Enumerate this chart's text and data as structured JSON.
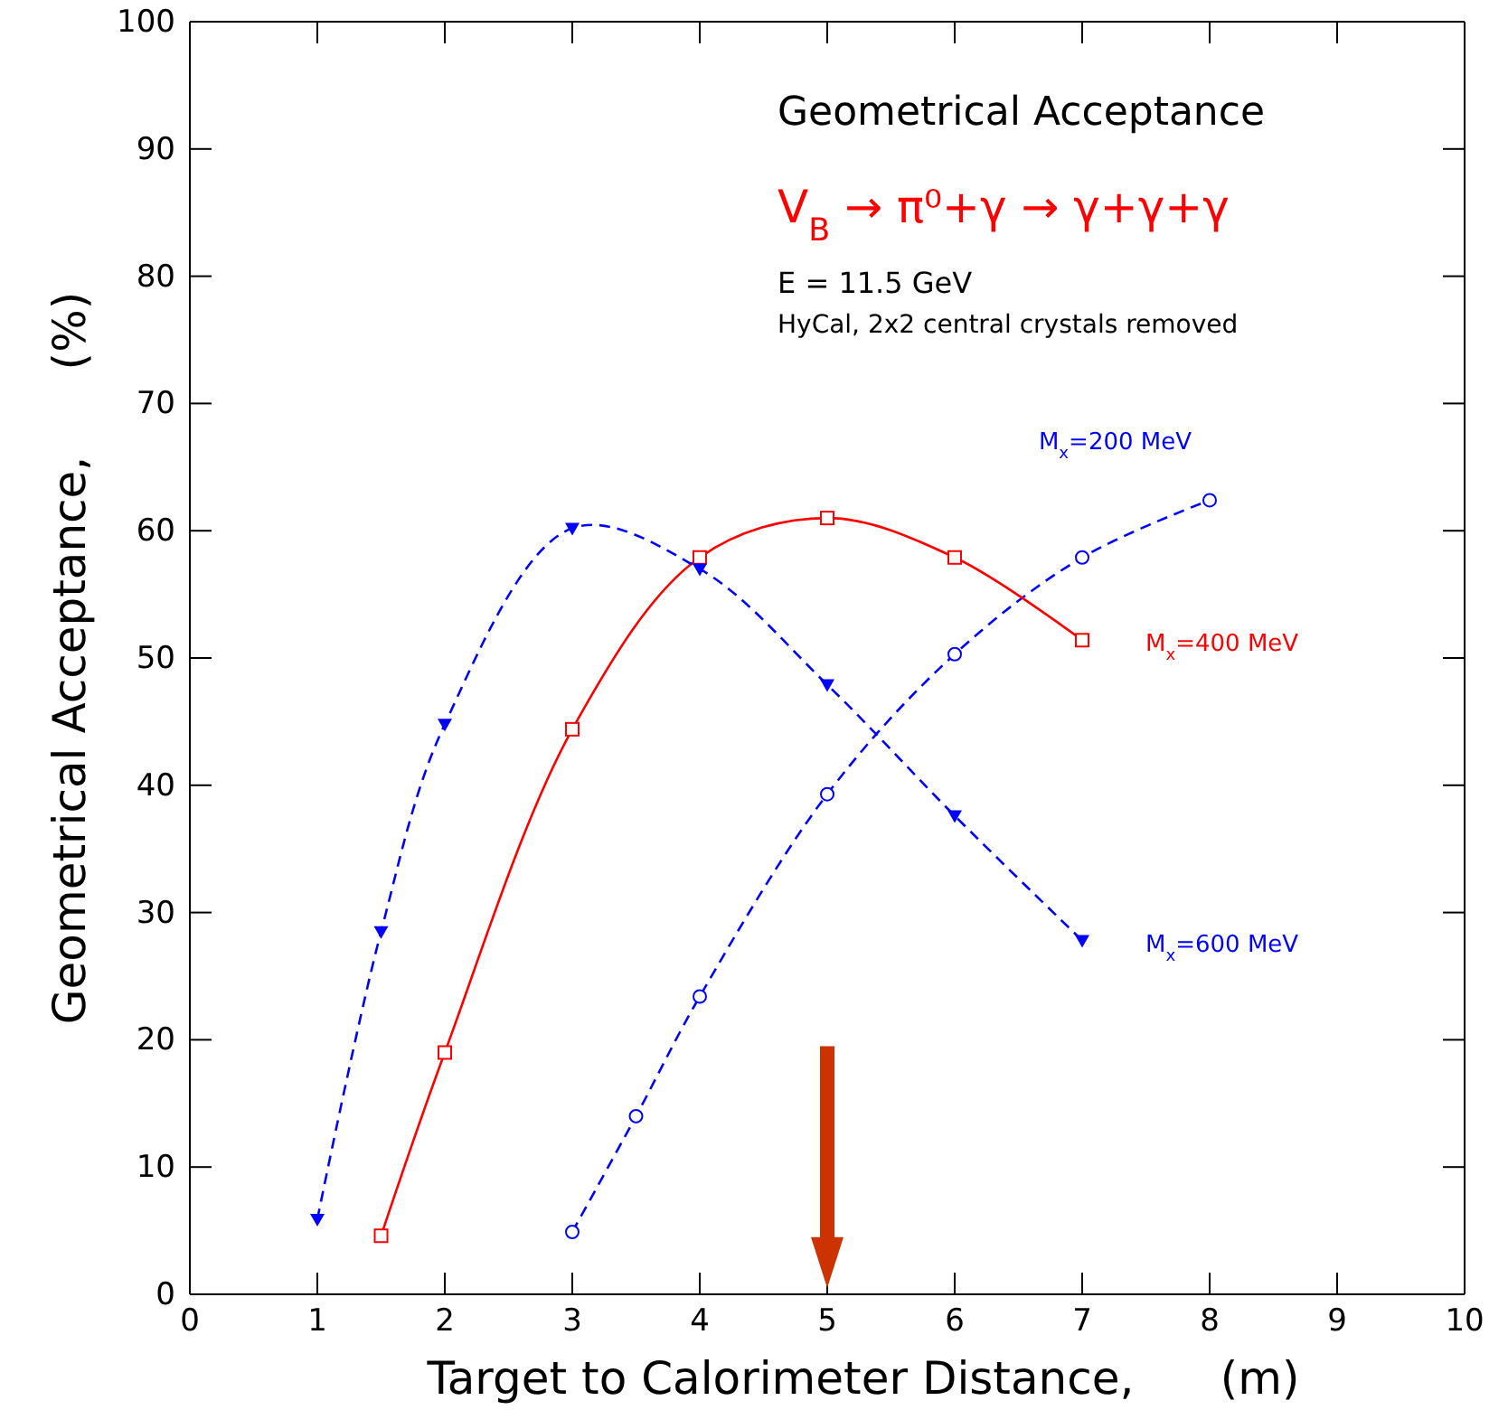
{
  "chart_data": {
    "type": "line",
    "title": "Geometrical Acceptance",
    "subtitle": "V$_{B}$ → π⁰+γ → γ+γ+γ",
    "xlabel": "Target to Calorimeter Distance,      (m)",
    "ylabel": "Geometrical Acceptance,      (%)",
    "annotations": [
      "E = 11.5 GeV",
      "HyCal, 2x2 central crystals removed"
    ],
    "xlim": [
      0,
      10
    ],
    "xticks": [
      0,
      1,
      2,
      3,
      4,
      5,
      6,
      7,
      8,
      9,
      10
    ],
    "ylim": [
      0,
      100
    ],
    "yticks": [
      0,
      10,
      20,
      30,
      40,
      50,
      60,
      70,
      80,
      90,
      100
    ],
    "grid": false,
    "series": [
      {
        "name": "M$_{x}$=200 MeV",
        "color": "#0000ff",
        "marker": "circle",
        "line_style": "dashed",
        "x": [
          3,
          3.5,
          4,
          5,
          6,
          7,
          8
        ],
        "values": [
          4.9,
          14,
          23.4,
          39.3,
          50.3,
          57.9,
          62.4
        ]
      },
      {
        "name": "M$_{x}$=400 MeV",
        "color": "#ff0000",
        "marker": "square",
        "line_style": "solid",
        "x": [
          1.5,
          2,
          3,
          4,
          5,
          6,
          7
        ],
        "values": [
          4.6,
          19,
          44.4,
          57.9,
          61,
          57.9,
          51.4
        ]
      },
      {
        "name": "M$_{x}$=600 MeV",
        "color": "#0000ff",
        "marker": "triangle",
        "line_style": "dashed",
        "x": [
          1,
          1.5,
          2,
          3,
          4,
          5,
          6,
          7
        ],
        "values": [
          5.9,
          28.5,
          44.8,
          60.2,
          57,
          47.9,
          37.6,
          27.8
        ]
      }
    ]
  }
}
